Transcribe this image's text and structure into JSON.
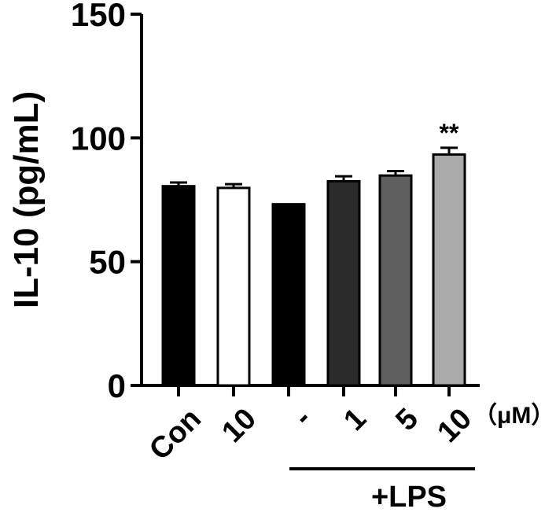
{
  "chart_data": {
    "type": "bar",
    "ylabel": "IL-10 (pg/mL)",
    "ylim": [
      0,
      150
    ],
    "yticks": [
      "0",
      "50",
      "100",
      "150"
    ],
    "categories": [
      "Con",
      "10",
      "-",
      "1",
      "5",
      "10"
    ],
    "values": [
      80.5,
      79.8,
      73.2,
      82.5,
      84.8,
      93.3
    ],
    "errors": [
      1.5,
      1.5,
      0,
      2.0,
      1.8,
      2.7
    ],
    "bar_colors": [
      "#000000",
      "#ffffff",
      "#000000",
      "#2b2b2b",
      "#5f5f5f",
      "#aaaaaa"
    ],
    "significance": [
      "",
      "",
      "",
      "",
      "",
      "**"
    ],
    "unit_label": "（μM）",
    "group_label": "+LPS",
    "grid": false
  }
}
